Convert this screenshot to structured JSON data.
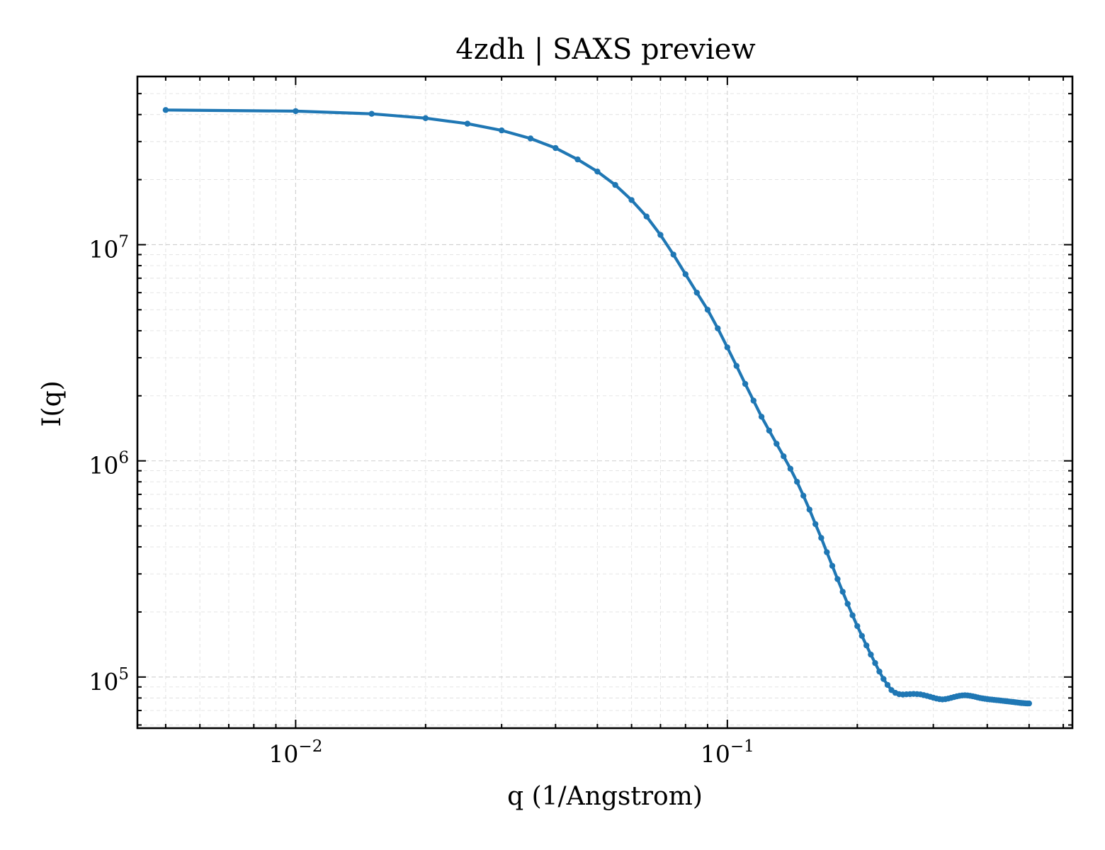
{
  "chart_data": {
    "type": "line",
    "title": "4zdh | SAXS preview",
    "xlabel": "q (1/Angstrom)",
    "ylabel": "I(q)",
    "xscale": "log",
    "yscale": "log",
    "xlim": [
      0.0043,
      0.63
    ],
    "ylim": [
      58000,
      60000000
    ],
    "grid": true,
    "x_ticks": [
      {
        "value": 0.01,
        "base": "10",
        "exp": "−2"
      },
      {
        "value": 0.1,
        "base": "10",
        "exp": "−1"
      }
    ],
    "y_ticks": [
      {
        "value": 100000,
        "base": "10",
        "exp": "5"
      },
      {
        "value": 1000000,
        "base": "10",
        "exp": "6"
      },
      {
        "value": 10000000,
        "base": "10",
        "exp": "7"
      }
    ],
    "series": [
      {
        "color": "#1f77b4",
        "x": [
          0.005,
          0.01,
          0.015,
          0.02,
          0.025,
          0.03,
          0.035,
          0.04,
          0.045,
          0.05,
          0.055,
          0.06,
          0.065,
          0.07,
          0.075,
          0.08,
          0.085,
          0.09,
          0.095,
          0.1,
          0.105,
          0.11,
          0.115,
          0.12,
          0.125,
          0.13,
          0.135,
          0.14,
          0.145,
          0.15,
          0.155,
          0.16,
          0.165,
          0.17,
          0.175,
          0.18,
          0.185,
          0.19,
          0.195,
          0.2,
          0.205,
          0.21,
          0.215,
          0.22,
          0.225,
          0.23,
          0.235,
          0.24,
          0.245,
          0.25,
          0.255,
          0.26,
          0.265,
          0.27,
          0.275,
          0.28,
          0.285,
          0.29,
          0.295,
          0.3,
          0.305,
          0.31,
          0.315,
          0.32,
          0.325,
          0.33,
          0.335,
          0.34,
          0.345,
          0.35,
          0.355,
          0.36,
          0.365,
          0.37,
          0.375,
          0.38,
          0.385,
          0.39,
          0.395,
          0.4,
          0.405,
          0.41,
          0.415,
          0.42,
          0.425,
          0.43,
          0.435,
          0.44,
          0.445,
          0.45,
          0.455,
          0.46,
          0.465,
          0.47,
          0.475,
          0.48,
          0.485,
          0.49,
          0.495,
          0.5
        ],
        "y": [
          42000000,
          41500000,
          40300000,
          38500000,
          36300000,
          33800000,
          31000000,
          28000000,
          24800000,
          21800000,
          18900000,
          16100000,
          13500000,
          11100000,
          9000000,
          7300000,
          6000000,
          5000000,
          4100000,
          3350000,
          2750000,
          2270000,
          1900000,
          1600000,
          1380000,
          1200000,
          1050000,
          920000,
          800000,
          690000,
          595000,
          510000,
          440000,
          378000,
          327000,
          284000,
          248000,
          218000,
          193000,
          172000,
          155000,
          140000,
          127000,
          116000,
          106000,
          98000,
          92000,
          87000,
          84500,
          83300,
          83000,
          83200,
          83400,
          83500,
          83400,
          83100,
          82500,
          81800,
          81000,
          80200,
          79500,
          79000,
          78800,
          79000,
          79500,
          80100,
          80800,
          81400,
          81900,
          82200,
          82300,
          82200,
          81900,
          81500,
          81000,
          80500,
          80000,
          79600,
          79300,
          79000,
          78800,
          78600,
          78400,
          78200,
          78000,
          77800,
          77600,
          77400,
          77200,
          77000,
          76800,
          76600,
          76400,
          76200,
          76000,
          75800,
          75700,
          75600,
          75500,
          75500
        ]
      }
    ]
  }
}
